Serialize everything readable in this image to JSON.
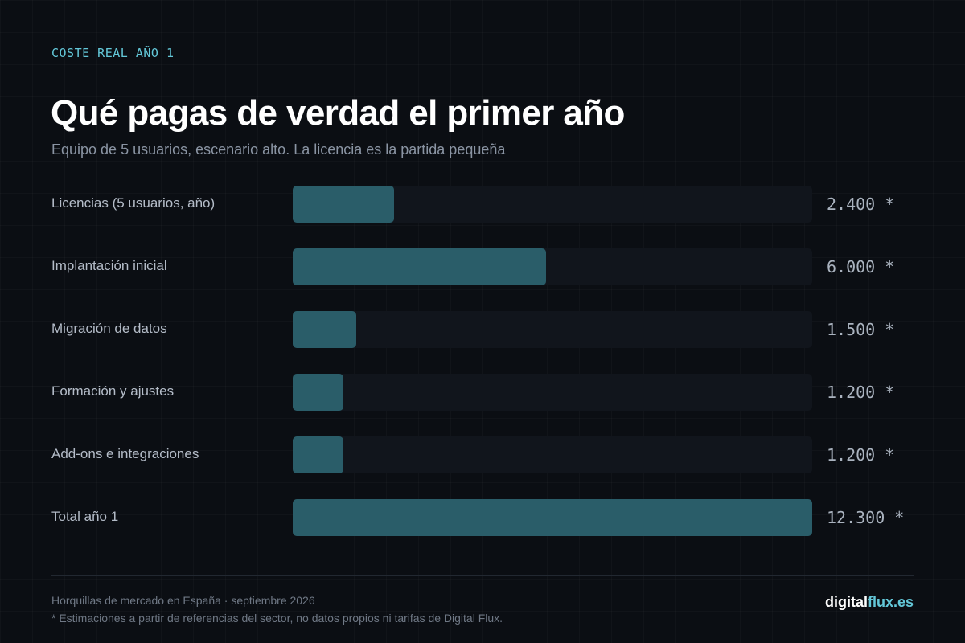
{
  "eyebrow": "COSTE REAL AÑO 1",
  "colors": {
    "background": "#0b0e13",
    "accent": "#63c7d8",
    "bar": "#2a5d69",
    "track": "#11151c"
  },
  "chart_data": {
    "type": "bar",
    "orientation": "horizontal",
    "title": "Qué pagas de verdad el primer año",
    "subtitle": "Equipo de 5 usuarios, escenario alto. La licencia es la partida pequeña",
    "categories": [
      "Licencias (5 usuarios, año)",
      "Implantación inicial",
      "Migración de datos",
      "Formación y ajustes",
      "Add-ons e integraciones",
      "Total año 1"
    ],
    "values": [
      2400,
      6000,
      1500,
      1200,
      1200,
      12300
    ],
    "value_labels": [
      "2.400 *",
      "6.000 *",
      "1.500 *",
      "1.200 *",
      "1.200 *",
      "12.300 *"
    ],
    "xlim": [
      0,
      12300
    ],
    "grid": false,
    "legend": "none"
  },
  "footer": {
    "source": "Horquillas de mercado en España · septiembre 2026",
    "note": "* Estimaciones a partir de referencias del sector, no datos propios ni tarifas de Digital Flux.",
    "brand_part1": "digital",
    "brand_part2": "flux.es"
  }
}
